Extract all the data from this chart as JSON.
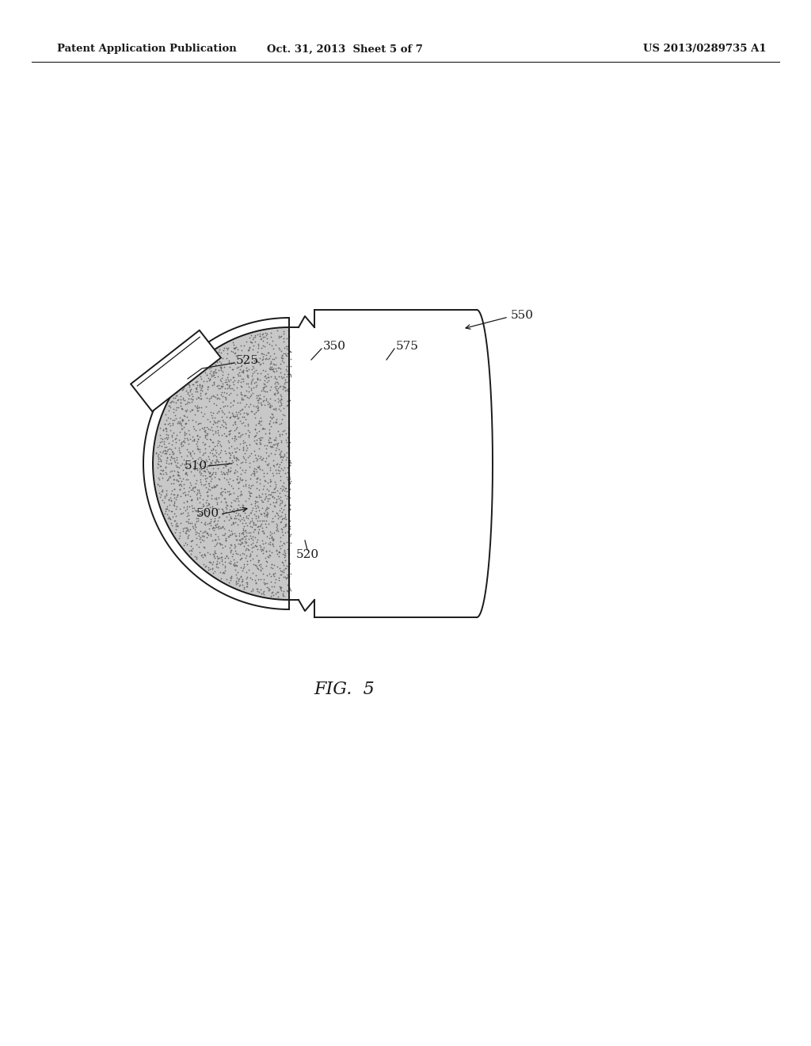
{
  "bg_color": "#ffffff",
  "header_left": "Patent Application Publication",
  "header_center": "Oct. 31, 2013  Sheet 5 of 7",
  "header_right": "US 2013/0289735 A1",
  "fig_label": "FIG.  5",
  "line_color": "#1a1a1a",
  "stipple_color": "#666666",
  "stipple_bg": "#c8c8c8",
  "label_fontsize": 11,
  "header_fontsize": 9,
  "lw": 1.4
}
